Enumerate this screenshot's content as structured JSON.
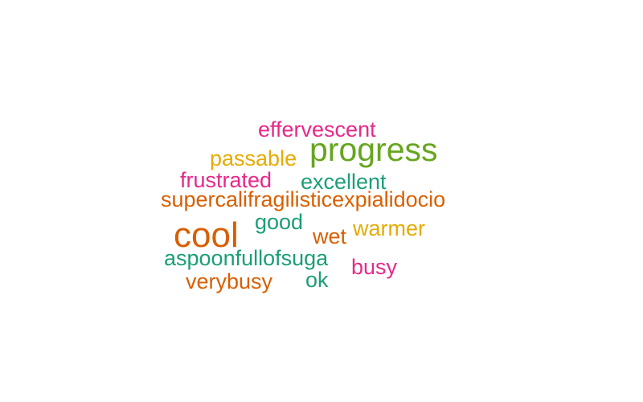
{
  "words": [
    {
      "text": "effervescent",
      "color": "#e7298a"
    },
    {
      "text": "progress",
      "color": "#66a61e"
    },
    {
      "text": "passable",
      "color": "#e6ab02"
    },
    {
      "text": "frustrated",
      "color": "#e7298a"
    },
    {
      "text": "excellent",
      "color": "#1b9e77"
    },
    {
      "text": "supercalifragilisticexpialidocio",
      "color": "#d95f02"
    },
    {
      "text": "cool",
      "color": "#d95f02"
    },
    {
      "text": "good",
      "color": "#1b9e77"
    },
    {
      "text": "warmer",
      "color": "#e6ab02"
    },
    {
      "text": "wet",
      "color": "#d95f02"
    },
    {
      "text": "aspoonfullofsuga",
      "color": "#1b9e77"
    },
    {
      "text": "busy",
      "color": "#e7298a"
    },
    {
      "text": "verybusy",
      "color": "#d95f02"
    },
    {
      "text": "ok",
      "color": "#1b9e77"
    }
  ]
}
